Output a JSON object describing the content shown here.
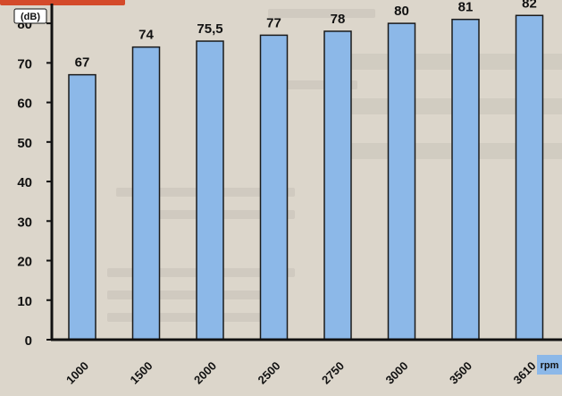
{
  "chart_data": {
    "type": "bar",
    "categories": [
      "1000",
      "1500",
      "2000",
      "2500",
      "2750",
      "3000",
      "3500",
      "3610"
    ],
    "values": [
      67,
      74,
      75.5,
      77,
      78,
      80,
      81,
      82
    ],
    "data_labels": [
      "67",
      "74",
      "75,5",
      "77",
      "78",
      "80",
      "81",
      "82"
    ],
    "title": "",
    "xlabel": "rpm",
    "ylabel": "(dB)",
    "ylim": [
      0,
      85
    ],
    "yticks": [
      0,
      10,
      20,
      30,
      40,
      50,
      60,
      70,
      80
    ],
    "grid": false,
    "bar_color": "#8cb8e8",
    "bar_edge_color": "#1a1a1a",
    "xlabel_badge_color": "#8cb8e8"
  }
}
